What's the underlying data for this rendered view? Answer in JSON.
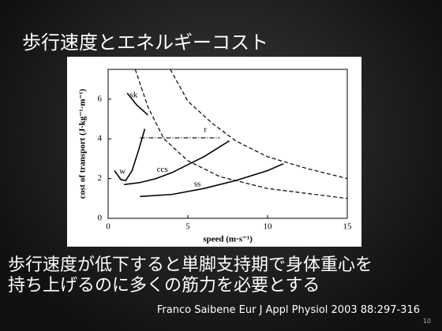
{
  "slide_title": "歩行速度とエネルギーコスト",
  "body": [
    "歩行速度が低下すると単脚支持期で身体重心を",
    "持ち上げるのに多くの筋力を必要とする"
  ],
  "citation": "Franco Saibene Eur J Appl Physiol 2003 88:297-316",
  "page_number": "10",
  "chart_data": {
    "type": "line",
    "xlabel": "speed (m·s⁻¹)",
    "ylabel": "cost of transport (J·kg⁻¹·m⁻¹)",
    "xlim": [
      0,
      15
    ],
    "xticks": [
      0,
      5,
      10,
      15
    ],
    "ylim": [
      0,
      7.5
    ],
    "yticks": [
      0,
      2,
      4,
      6
    ],
    "series": [
      {
        "name": "sk",
        "color": "#000000",
        "style": "solid",
        "x": [
          1.2,
          1.8,
          2.5
        ],
        "y": [
          6.3,
          5.7,
          5.2
        ]
      },
      {
        "name": "w",
        "color": "#000000",
        "style": "solid",
        "x": [
          0.4,
          0.8,
          1.1,
          1.5,
          1.9,
          2.3
        ],
        "y": [
          2.4,
          1.95,
          1.9,
          2.4,
          3.4,
          4.5
        ]
      },
      {
        "name": "ccs",
        "color": "#000000",
        "style": "solid",
        "x": [
          1,
          2,
          3,
          4,
          5,
          6,
          7,
          7.6
        ],
        "y": [
          1.7,
          1.8,
          2.0,
          2.3,
          2.7,
          3.1,
          3.6,
          3.9
        ]
      },
      {
        "name": "ss",
        "color": "#000000",
        "style": "solid",
        "x": [
          2,
          4,
          6,
          8,
          10,
          11
        ],
        "y": [
          1.1,
          1.2,
          1.5,
          1.9,
          2.4,
          2.75
        ]
      },
      {
        "name": "r",
        "color": "#000000",
        "style": "dashdot",
        "x": [
          2,
          7
        ],
        "y": [
          4.05,
          4.05
        ]
      },
      {
        "color": "#000000",
        "style": "dashed",
        "x": [
          1.7,
          2.5,
          3.5,
          5,
          7,
          10,
          15
        ],
        "y": [
          7.5,
          5.6,
          4.0,
          2.9,
          2.1,
          1.5,
          1.0
        ]
      },
      {
        "color": "#000000",
        "style": "dashed",
        "x": [
          3.9,
          5,
          6.5,
          8,
          10,
          12.5,
          15
        ],
        "y": [
          7.5,
          5.9,
          4.8,
          3.9,
          3.1,
          2.5,
          2.0
        ]
      }
    ]
  }
}
